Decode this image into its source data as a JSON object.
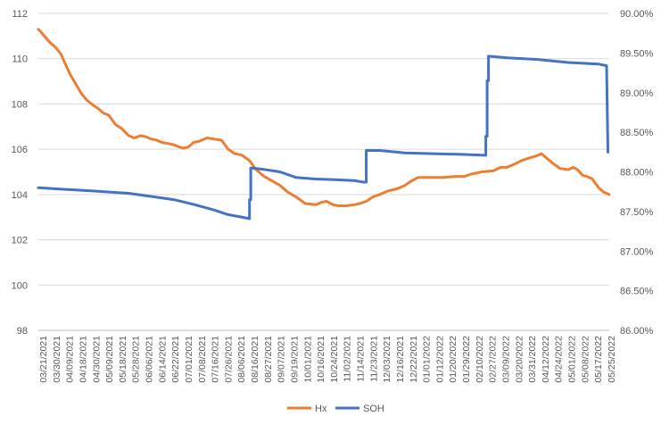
{
  "chart_data": {
    "type": "line",
    "title": "",
    "grid": true,
    "legend_position": "bottom",
    "y_left": {
      "min": 98,
      "max": 112,
      "step": 2,
      "ticks": [
        "98",
        "100",
        "102",
        "104",
        "106",
        "108",
        "110",
        "112"
      ]
    },
    "y_right": {
      "min": 86.0,
      "max": 90.0,
      "step": 0.5,
      "ticks": [
        "86.00%",
        "86.50%",
        "87.00%",
        "87.50%",
        "88.00%",
        "88.50%",
        "89.00%",
        "89.50%",
        "90.00%"
      ]
    },
    "x_start": "03/21/2021",
    "x_end": "05/25/2022",
    "x_ticks": [
      "03/21/2021",
      "03/30/2021",
      "04/09/2021",
      "04/18/2021",
      "04/30/2021",
      "05/09/2021",
      "05/18/2021",
      "05/28/2021",
      "06/06/2021",
      "06/14/2021",
      "06/22/2021",
      "07/01/2021",
      "07/08/2021",
      "07/16/2021",
      "07/26/2021",
      "08/06/2021",
      "08/16/2021",
      "08/27/2021",
      "09/07/2021",
      "09/19/2021",
      "10/01/2021",
      "10/16/2021",
      "10/24/2021",
      "11/02/2021",
      "11/14/2021",
      "11/23/2021",
      "12/03/2021",
      "12/16/2021",
      "12/22/2021",
      "01/01/2022",
      "01/12/2022",
      "01/20/2022",
      "01/29/2022",
      "02/10/2022",
      "02/27/2022",
      "03/09/2022",
      "03/20/2022",
      "03/31/2022",
      "04/12/2022",
      "04/24/2022",
      "05/01/2022",
      "05/08/2022",
      "05/17/2022",
      "05/25/2022"
    ],
    "series": [
      {
        "name": "Hx",
        "axis": "left",
        "color": "#ED7D31",
        "points": [
          [
            "03/21/2021",
            111.3
          ],
          [
            "03/24/2021",
            111.1
          ],
          [
            "03/27/2021",
            110.9
          ],
          [
            "03/30/2021",
            110.7
          ],
          [
            "04/03/2021",
            110.5
          ],
          [
            "04/07/2021",
            110.2
          ],
          [
            "04/10/2021",
            109.8
          ],
          [
            "04/14/2021",
            109.3
          ],
          [
            "04/18/2021",
            108.9
          ],
          [
            "04/22/2021",
            108.5
          ],
          [
            "04/26/2021",
            108.2
          ],
          [
            "04/30/2021",
            108.0
          ],
          [
            "05/05/2021",
            107.8
          ],
          [
            "05/09/2021",
            107.6
          ],
          [
            "05/13/2021",
            107.5
          ],
          [
            "05/18/2021",
            107.1
          ],
          [
            "05/23/2021",
            106.9
          ],
          [
            "05/28/2021",
            106.6
          ],
          [
            "06/01/2021",
            106.5
          ],
          [
            "06/06/2021",
            106.6
          ],
          [
            "06/10/2021",
            106.55
          ],
          [
            "06/14/2021",
            106.45
          ],
          [
            "06/18/2021",
            106.4
          ],
          [
            "06/22/2021",
            106.3
          ],
          [
            "06/27/2021",
            106.25
          ],
          [
            "07/01/2021",
            106.2
          ],
          [
            "07/05/2021",
            106.1
          ],
          [
            "07/08/2021",
            106.05
          ],
          [
            "07/12/2021",
            106.1
          ],
          [
            "07/16/2021",
            106.3
          ],
          [
            "07/20/2021",
            106.35
          ],
          [
            "07/26/2021",
            106.5
          ],
          [
            "07/31/2021",
            106.45
          ],
          [
            "08/06/2021",
            106.4
          ],
          [
            "08/11/2021",
            106.0
          ],
          [
            "08/16/2021",
            105.8
          ],
          [
            "08/21/2021",
            105.75
          ],
          [
            "08/27/2021",
            105.5
          ],
          [
            "09/01/2021",
            105.1
          ],
          [
            "09/07/2021",
            104.8
          ],
          [
            "09/13/2021",
            104.6
          ],
          [
            "09/19/2021",
            104.4
          ],
          [
            "09/25/2021",
            104.1
          ],
          [
            "10/01/2021",
            103.9
          ],
          [
            "10/08/2021",
            103.6
          ],
          [
            "10/16/2021",
            103.55
          ],
          [
            "10/20/2021",
            103.65
          ],
          [
            "10/24/2021",
            103.7
          ],
          [
            "10/29/2021",
            103.55
          ],
          [
            "11/02/2021",
            103.5
          ],
          [
            "11/08/2021",
            103.5
          ],
          [
            "11/14/2021",
            103.55
          ],
          [
            "11/18/2021",
            103.6
          ],
          [
            "11/23/2021",
            103.7
          ],
          [
            "11/28/2021",
            103.9
          ],
          [
            "12/03/2021",
            104.0
          ],
          [
            "12/09/2021",
            104.15
          ],
          [
            "12/16/2021",
            104.25
          ],
          [
            "12/22/2021",
            104.4
          ],
          [
            "12/27/2021",
            104.6
          ],
          [
            "01/01/2022",
            104.75
          ],
          [
            "01/06/2022",
            104.75
          ],
          [
            "01/12/2022",
            104.75
          ],
          [
            "01/20/2022",
            104.75
          ],
          [
            "01/29/2022",
            104.8
          ],
          [
            "02/05/2022",
            104.8
          ],
          [
            "02/10/2022",
            104.9
          ],
          [
            "02/18/2022",
            105.0
          ],
          [
            "02/27/2022",
            105.05
          ],
          [
            "03/04/2022",
            105.2
          ],
          [
            "03/09/2022",
            105.2
          ],
          [
            "03/15/2022",
            105.35
          ],
          [
            "03/20/2022",
            105.5
          ],
          [
            "03/25/2022",
            105.6
          ],
          [
            "03/31/2022",
            105.7
          ],
          [
            "04/04/2022",
            105.8
          ],
          [
            "04/08/2022",
            105.6
          ],
          [
            "04/12/2022",
            105.4
          ],
          [
            "04/18/2022",
            105.15
          ],
          [
            "04/24/2022",
            105.1
          ],
          [
            "04/28/2022",
            105.2
          ],
          [
            "05/01/2022",
            105.1
          ],
          [
            "05/05/2022",
            104.85
          ],
          [
            "05/08/2022",
            104.8
          ],
          [
            "05/12/2022",
            104.7
          ],
          [
            "05/17/2022",
            104.3
          ],
          [
            "05/21/2022",
            104.1
          ],
          [
            "05/25/2022",
            104.0
          ]
        ]
      },
      {
        "name": "SOH",
        "axis": "right",
        "color": "#4472C4",
        "points": [
          [
            "03/21/2021",
            87.8
          ],
          [
            "04/09/2021",
            87.78
          ],
          [
            "04/30/2021",
            87.76
          ],
          [
            "05/28/2021",
            87.73
          ],
          [
            "06/14/2021",
            87.69
          ],
          [
            "07/01/2021",
            87.65
          ],
          [
            "07/16/2021",
            87.59
          ],
          [
            "07/31/2021",
            87.52
          ],
          [
            "08/11/2021",
            87.46
          ],
          [
            "08/21/2021",
            87.43
          ],
          [
            "08/27/2021",
            87.41
          ],
          [
            "08/27/2021",
            87.65
          ],
          [
            "08/28/2021",
            87.65
          ],
          [
            "08/28/2021",
            88.05
          ],
          [
            "09/07/2021",
            88.03
          ],
          [
            "09/19/2021",
            88.0
          ],
          [
            "10/01/2021",
            87.93
          ],
          [
            "10/16/2021",
            87.91
          ],
          [
            "11/02/2021",
            87.9
          ],
          [
            "11/14/2021",
            87.89
          ],
          [
            "11/21/2021",
            87.87
          ],
          [
            "11/23/2021",
            87.87
          ],
          [
            "11/23/2021",
            88.27
          ],
          [
            "12/03/2021",
            88.27
          ],
          [
            "12/22/2021",
            88.24
          ],
          [
            "01/12/2022",
            88.23
          ],
          [
            "02/05/2022",
            88.22
          ],
          [
            "02/20/2022",
            88.21
          ],
          [
            "02/21/2022",
            88.21
          ],
          [
            "02/21/2022",
            88.45
          ],
          [
            "02/22/2022",
            88.45
          ],
          [
            "02/22/2022",
            89.15
          ],
          [
            "02/23/2022",
            89.15
          ],
          [
            "02/23/2022",
            89.46
          ],
          [
            "03/09/2022",
            89.44
          ],
          [
            "03/31/2022",
            89.42
          ],
          [
            "04/12/2022",
            89.4
          ],
          [
            "04/24/2022",
            89.38
          ],
          [
            "05/17/2022",
            89.36
          ],
          [
            "05/23/2022",
            89.34
          ],
          [
            "05/24/2022",
            88.25
          ]
        ]
      }
    ]
  }
}
